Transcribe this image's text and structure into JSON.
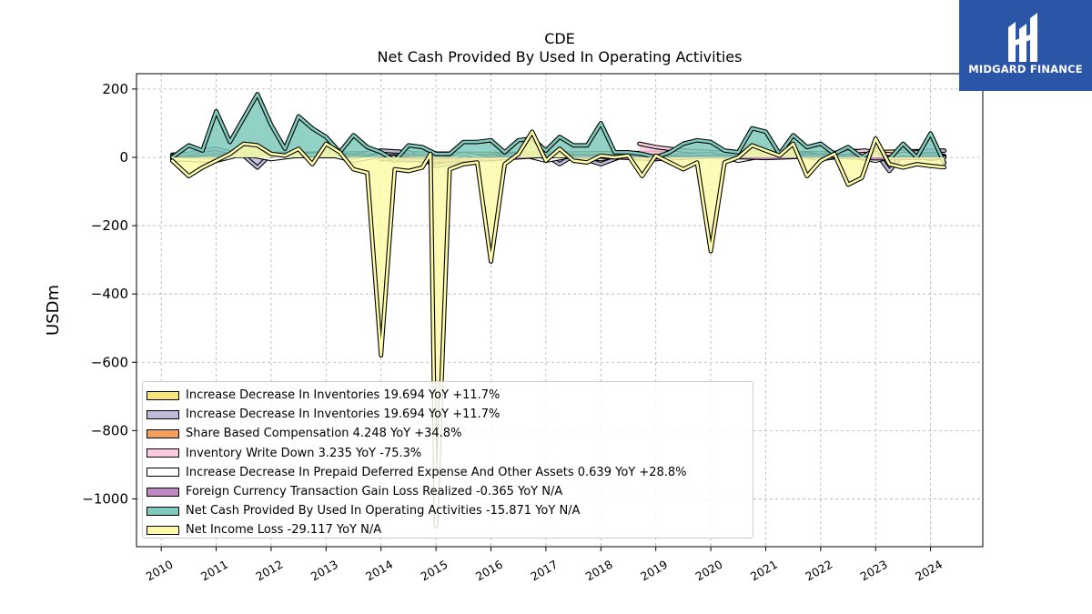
{
  "header": {
    "ticker": "CDE",
    "subtitle": "Net Cash Provided By Used In Operating Activities"
  },
  "brand": {
    "name": "MIDGARD FINANCE",
    "color": "#2b56a8"
  },
  "legend": {
    "items": [
      {
        "label": "Increase Decrease In Inventories  19.694 YoY +11.7%",
        "color": "#f7e57a"
      },
      {
        "label": "Increase Decrease In Inventories  19.694 YoY +11.7%",
        "color": "#bcbcd9"
      },
      {
        "label": "Share Based Compensation  4.248 YoY +34.8%",
        "color": "#f5a05a"
      },
      {
        "label": "Inventory Write Down  3.235 YoY -75.3%",
        "color": "#f9c9dd"
      },
      {
        "label": "Increase Decrease In Prepaid Deferred Expense And Other Assets  0.639 YoY +28.8%",
        "color": "#ffffff"
      },
      {
        "label": "Foreign Currency Transaction Gain Loss Realized  -0.365 YoY N/A",
        "color": "#c087c4"
      },
      {
        "label": "Net Cash Provided By Used In Operating Activities  -15.871 YoY N/A",
        "color": "#7fcabc"
      },
      {
        "label": "Net Income Loss  -29.117 YoY N/A",
        "color": "#fdfaa8"
      }
    ]
  },
  "chart_data": {
    "type": "area",
    "title": "CDE",
    "subtitle": "Net Cash Provided By Used In Operating Activities",
    "xlabel": "",
    "ylabel": "USDm",
    "xlim": [
      2009.55,
      2024.95
    ],
    "ylim": [
      -1140,
      245
    ],
    "x_ticks": [
      2010,
      2011,
      2012,
      2013,
      2014,
      2015,
      2016,
      2017,
      2018,
      2019,
      2020,
      2021,
      2022,
      2023,
      2024
    ],
    "x_tick_labels": [
      "2010",
      "2011",
      "2012",
      "2013",
      "2014",
      "2015",
      "2016",
      "2017",
      "2018",
      "2019",
      "2020",
      "2021",
      "2022",
      "2023",
      "2024"
    ],
    "y_ticks": [
      200,
      0,
      -200,
      -400,
      -600,
      -800,
      -1000
    ],
    "y_tick_labels": [
      "200",
      "0",
      "−200",
      "−400",
      "−600",
      "−800",
      "−1000"
    ],
    "grid": true,
    "legend_position": "lower-left",
    "series": [
      {
        "name": "Increase Decrease In Inventories  19.694 YoY +11.7%",
        "color": "#f7e57a",
        "x": [
          2010.2,
          2012.0,
          2014.0,
          2016.0,
          2018.0,
          2020.0,
          2022.0,
          2024.25
        ],
        "y": [
          8,
          10,
          12,
          10,
          12,
          14,
          12,
          19.7
        ]
      },
      {
        "name": "Increase Decrease In Inventories  19.694 YoY +11.7%",
        "color": "#bcbcd9",
        "x": [
          2010.2,
          2010.5,
          2010.75,
          2011.0,
          2011.25,
          2011.5,
          2011.75,
          2012.0,
          2012.5,
          2013.0,
          2013.5,
          2014.0,
          2014.5,
          2015.0,
          2015.5,
          2016.0,
          2016.5,
          2017.0,
          2017.25,
          2017.5,
          2018.0,
          2018.5,
          2019.0,
          2019.5,
          2020.0,
          2020.5,
          2021.0,
          2021.5,
          2022.0,
          2022.5,
          2023.0,
          2023.25,
          2023.5,
          2024.0,
          2024.25
        ],
        "y": [
          5,
          10,
          20,
          25,
          15,
          5,
          -30,
          10,
          5,
          15,
          5,
          20,
          15,
          -25,
          -10,
          5,
          10,
          5,
          -20,
          5,
          -20,
          10,
          5,
          20,
          10,
          5,
          10,
          15,
          5,
          20,
          15,
          -40,
          10,
          20,
          19.7
        ]
      },
      {
        "name": "Share Based Compensation  4.248 YoY +34.8%",
        "color": "#f5a05a",
        "x": [
          2010.2,
          2010.5,
          2011.0,
          2012.0,
          2014.0,
          2016.0,
          2018.0,
          2020.0,
          2022.0,
          2024.25
        ],
        "y": [
          -8,
          -5,
          5,
          4,
          3,
          4,
          4,
          4,
          4,
          4.2
        ]
      },
      {
        "name": "Inventory Write Down  3.235 YoY -75.3%",
        "color": "#f9c9dd",
        "x": [
          2018.7,
          2019.0,
          2019.5,
          2020.0,
          2020.5,
          2021.0,
          2021.5,
          2022.0,
          2022.5,
          2022.8,
          2023.2,
          2023.5,
          2024.0,
          2024.25
        ],
        "y": [
          40,
          30,
          20,
          15,
          10,
          5,
          10,
          5,
          15,
          20,
          10,
          5,
          5,
          3.2
        ]
      },
      {
        "name": "Increase Decrease In Prepaid Deferred Expense And Other Assets  0.639 YoY +28.8%",
        "color": "#ffffff",
        "x": [
          2010.2,
          2011.0,
          2011.5,
          2012.0,
          2012.5,
          2013.0,
          2013.5,
          2014.0,
          2014.5,
          2015.0,
          2015.5,
          2016.0,
          2016.5,
          2017.0,
          2017.5,
          2018.0,
          2018.5,
          2019.0,
          2019.5,
          2020.0,
          2020.5,
          2021.0,
          2021.5,
          2022.0,
          2022.5,
          2023.0,
          2023.5,
          2024.0,
          2024.25
        ],
        "y": [
          -5,
          -10,
          10,
          -5,
          5,
          10,
          -10,
          5,
          -5,
          -15,
          10,
          -5,
          10,
          -10,
          5,
          -5,
          10,
          -5,
          5,
          10,
          -10,
          5,
          10,
          -5,
          5,
          -10,
          10,
          -5,
          0.6
        ]
      },
      {
        "name": "Foreign Currency Transaction Gain Loss Realized  -0.365 YoY N/A",
        "color": "#c087c4",
        "x": [
          2014.0,
          2015.0,
          2016.0,
          2017.0,
          2018.0,
          2019.0,
          2020.0,
          2021.0,
          2022.0,
          2023.0,
          2024.25
        ],
        "y": [
          -5,
          -10,
          -5,
          5,
          2,
          -5,
          3,
          -2,
          4,
          -3,
          -0.4
        ]
      },
      {
        "name": "Net Cash Provided By Used In Operating Activities  -15.871 YoY N/A",
        "color": "#7fcabc",
        "x": [
          2010.2,
          2010.5,
          2010.75,
          2011.0,
          2011.25,
          2011.5,
          2011.75,
          2012.0,
          2012.25,
          2012.5,
          2012.75,
          2013.0,
          2013.25,
          2013.5,
          2013.75,
          2014.0,
          2014.25,
          2014.5,
          2014.75,
          2015.0,
          2015.25,
          2015.5,
          2015.75,
          2016.0,
          2016.25,
          2016.5,
          2016.75,
          2017.0,
          2017.25,
          2017.5,
          2017.75,
          2018.0,
          2018.25,
          2018.5,
          2018.75,
          2019.0,
          2019.25,
          2019.5,
          2019.75,
          2020.0,
          2020.25,
          2020.5,
          2020.75,
          2021.0,
          2021.25,
          2021.5,
          2021.75,
          2022.0,
          2022.25,
          2022.5,
          2022.75,
          2023.0,
          2023.25,
          2023.5,
          2023.75,
          2024.0,
          2024.25
        ],
        "y": [
          0,
          35,
          20,
          135,
          45,
          115,
          185,
          95,
          25,
          120,
          85,
          60,
          15,
          65,
          30,
          15,
          -10,
          35,
          30,
          10,
          10,
          45,
          45,
          50,
          15,
          50,
          55,
          20,
          60,
          35,
          35,
          100,
          15,
          15,
          10,
          0,
          15,
          40,
          50,
          45,
          20,
          15,
          85,
          75,
          10,
          65,
          30,
          40,
          10,
          30,
          0,
          25,
          -5,
          40,
          0,
          70,
          -15.9
        ]
      },
      {
        "name": "Net Income Loss  -29.117 YoY N/A",
        "color": "#fdfaa8",
        "x": [
          2010.2,
          2010.5,
          2010.75,
          2011.0,
          2011.25,
          2011.5,
          2011.75,
          2012.0,
          2012.25,
          2012.5,
          2012.75,
          2013.0,
          2013.25,
          2013.5,
          2013.75,
          2014.0,
          2014.25,
          2014.5,
          2014.75,
          2014.9,
          2015.0,
          2015.25,
          2015.5,
          2015.75,
          2016.0,
          2016.25,
          2016.5,
          2016.75,
          2017.0,
          2017.25,
          2017.5,
          2017.75,
          2018.0,
          2018.25,
          2018.5,
          2018.75,
          2019.0,
          2019.25,
          2019.5,
          2019.75,
          2020.0,
          2020.25,
          2020.5,
          2020.75,
          2021.0,
          2021.25,
          2021.5,
          2021.75,
          2022.0,
          2022.25,
          2022.5,
          2022.75,
          2023.0,
          2023.25,
          2023.5,
          2023.75,
          2024.0,
          2024.25
        ],
        "y": [
          -10,
          -55,
          -30,
          -10,
          10,
          40,
          35,
          10,
          5,
          25,
          -20,
          40,
          15,
          -35,
          -45,
          -580,
          -35,
          -40,
          -30,
          10,
          -1080,
          -35,
          -20,
          -15,
          -305,
          -20,
          10,
          75,
          -10,
          25,
          -10,
          -15,
          5,
          0,
          5,
          -55,
          5,
          -15,
          -35,
          -15,
          -275,
          -15,
          0,
          35,
          20,
          5,
          40,
          -55,
          -10,
          10,
          -80,
          -60,
          55,
          -20,
          -30,
          -20,
          -25,
          -29.1
        ]
      }
    ]
  }
}
